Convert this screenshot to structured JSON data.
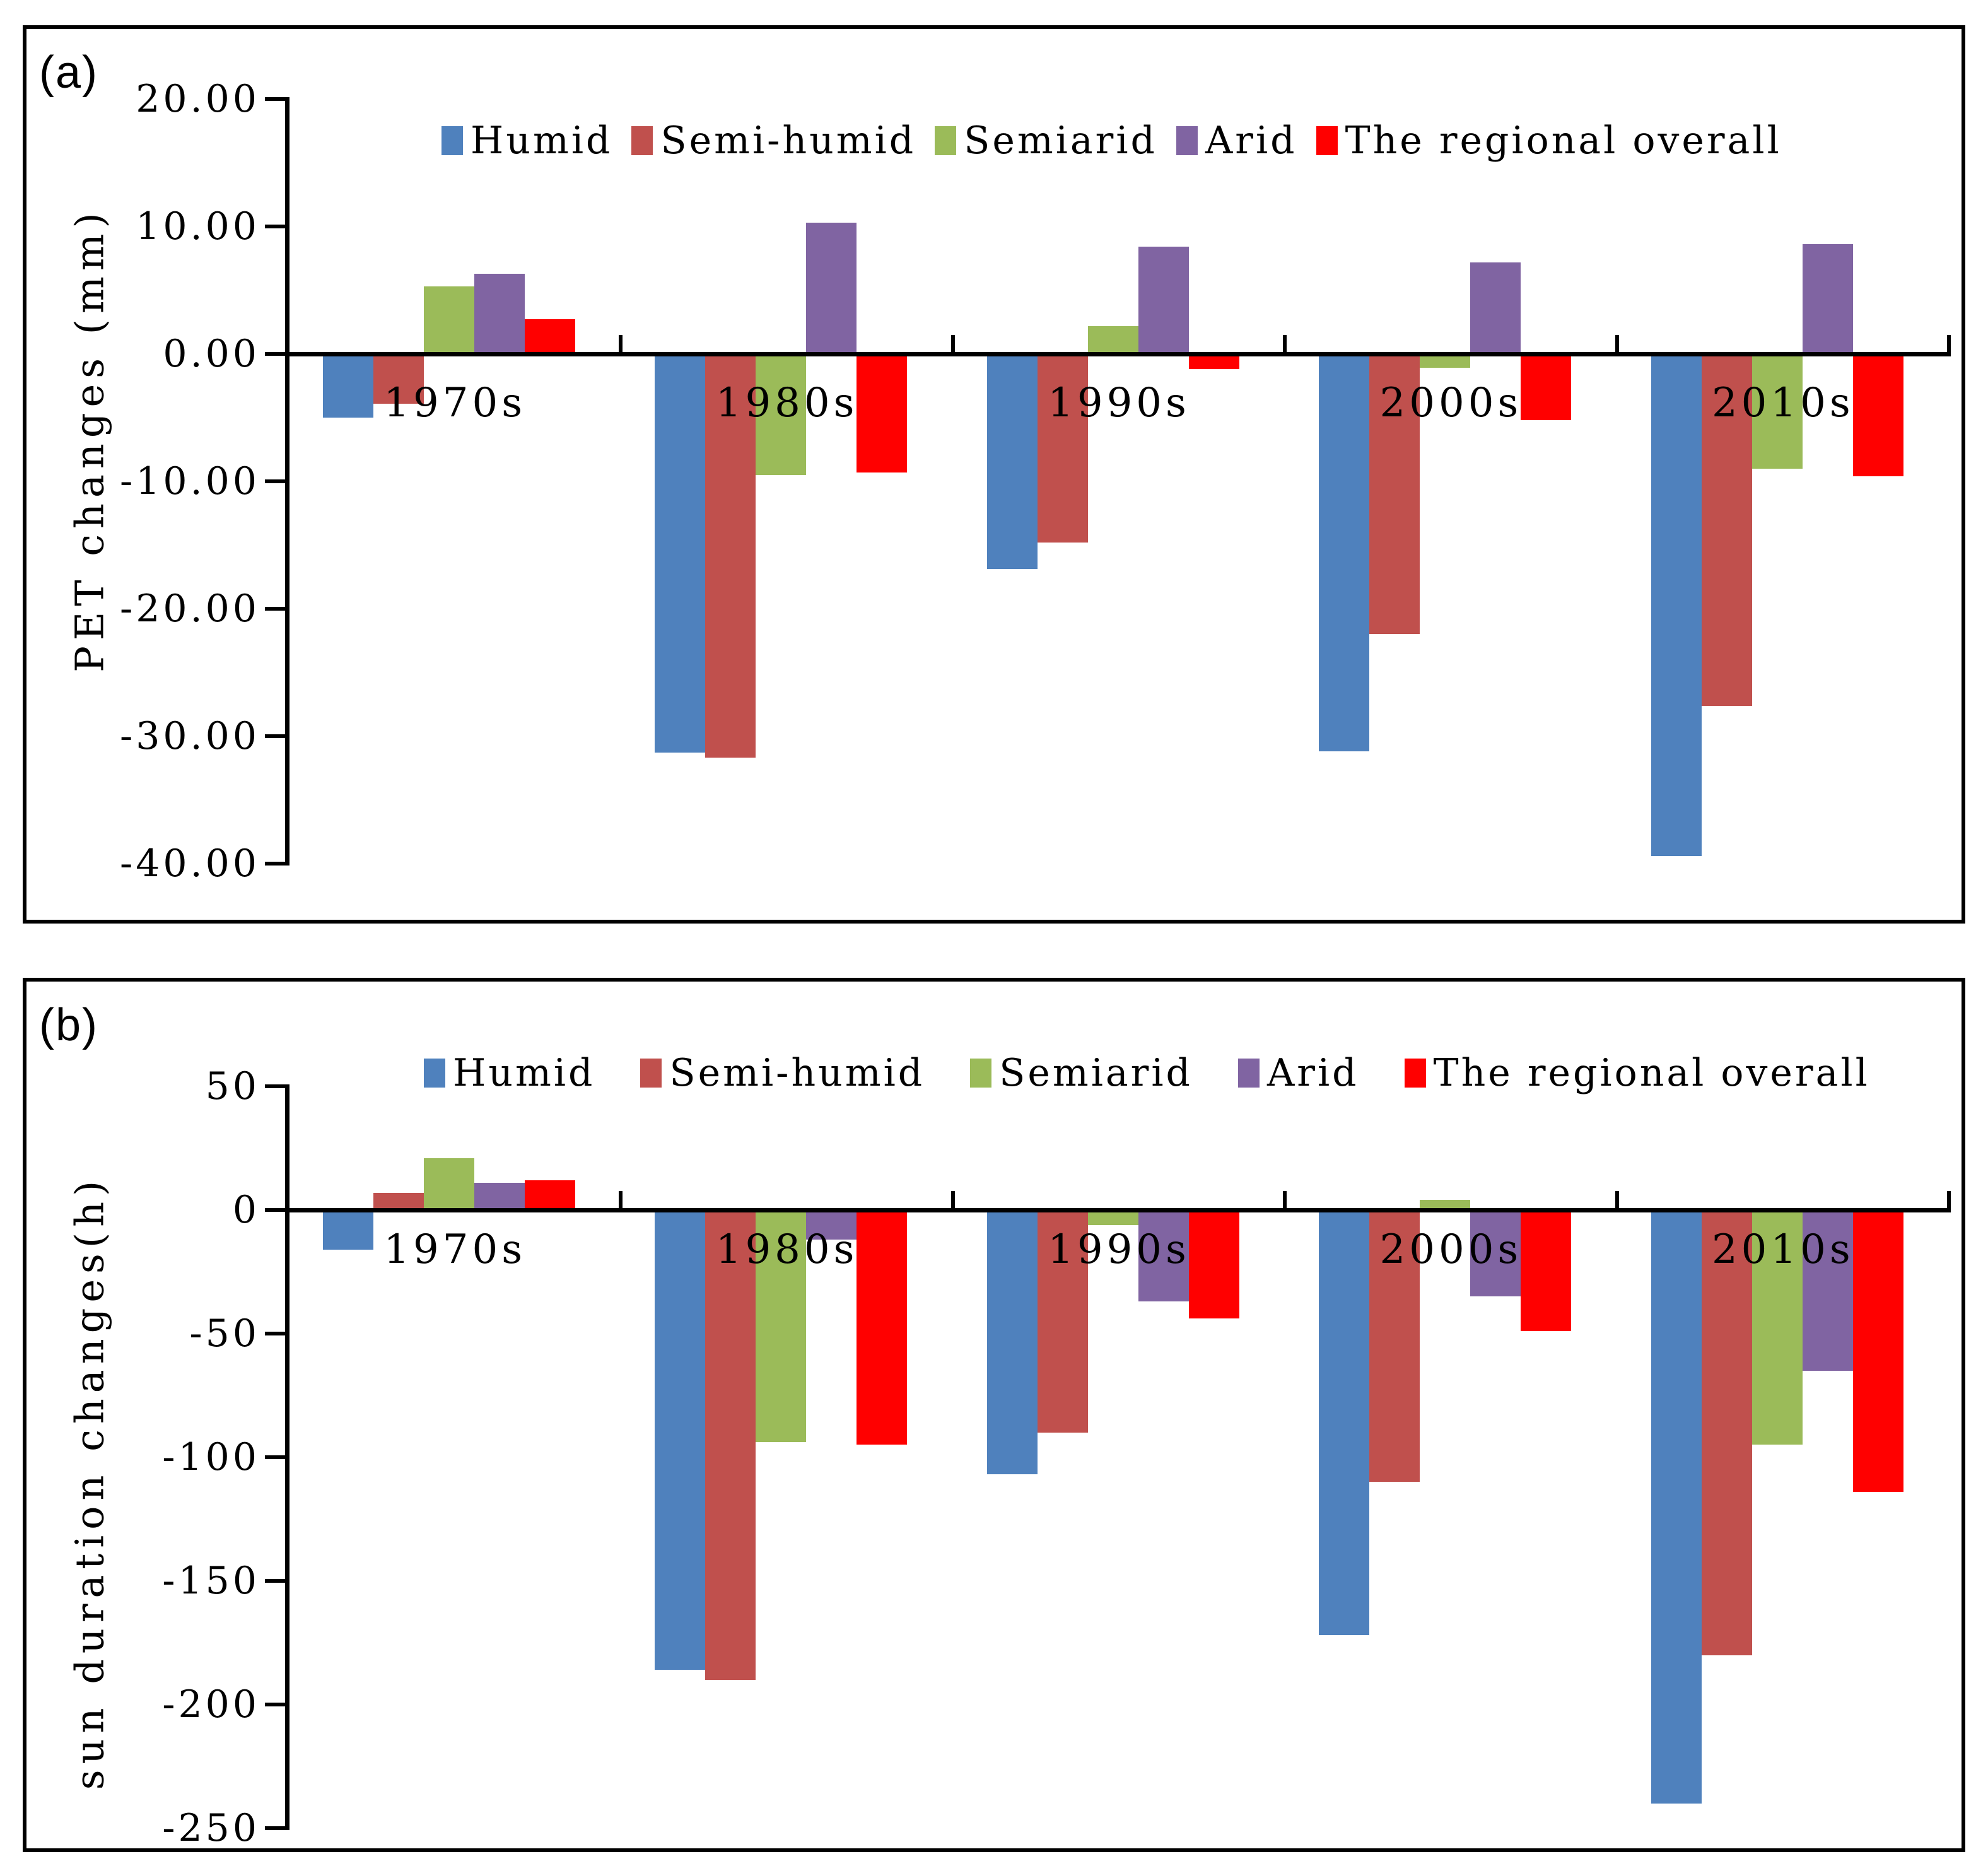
{
  "chart_data": [
    {
      "id": "a",
      "type": "bar",
      "panel_label": "(a)",
      "ylabel": "PET changes (mm)",
      "xlabel": "",
      "title": "",
      "grid": false,
      "legend_position": "top-inside",
      "ylim": [
        -40,
        20
      ],
      "y_tick_values": [
        20,
        10,
        0,
        -10,
        -20,
        -30,
        -40
      ],
      "y_tick_labels": [
        "20.00",
        "10.00",
        "0.00",
        "-10.00",
        "-20.00",
        "-30.00",
        "-40.00"
      ],
      "categories": [
        "1970s",
        "1980s",
        "1990s",
        "2000s",
        "2010s"
      ],
      "series": [
        {
          "name": "Humid",
          "color": "#4F81BD",
          "values": [
            -5.0,
            -31.3,
            -16.9,
            -31.2,
            -39.4
          ]
        },
        {
          "name": "Semi-humid",
          "color": "#C0504D",
          "values": [
            -3.9,
            -31.7,
            -14.8,
            -22.0,
            -27.6
          ]
        },
        {
          "name": "Semiarid",
          "color": "#9BBB59",
          "values": [
            5.3,
            -9.5,
            2.2,
            -1.1,
            -9.0
          ]
        },
        {
          "name": "Arid",
          "color": "#8064A2",
          "values": [
            6.3,
            10.3,
            8.4,
            7.2,
            8.6
          ]
        },
        {
          "name": "The regional overall",
          "color": "#FF0000",
          "values": [
            2.7,
            -9.3,
            -1.2,
            -5.2,
            -9.6
          ]
        }
      ]
    },
    {
      "id": "b",
      "type": "bar",
      "panel_label": "(b)",
      "ylabel": "sun duration changes(h)",
      "xlabel": "",
      "title": "",
      "grid": false,
      "legend_position": "top-inside",
      "ylim": [
        -250,
        50
      ],
      "y_tick_values": [
        50,
        0,
        -50,
        -100,
        -150,
        -200,
        -250
      ],
      "y_tick_labels": [
        "50",
        "0",
        "-50",
        "-100",
        "-150",
        "-200",
        "-250"
      ],
      "categories": [
        "1970s",
        "1980s",
        "1990s",
        "2000s",
        "2010s"
      ],
      "series": [
        {
          "name": "Humid",
          "color": "#4F81BD",
          "values": [
            -16,
            -186,
            -107,
            -172,
            -240
          ]
        },
        {
          "name": "Semi-humid",
          "color": "#C0504D",
          "values": [
            7,
            -190,
            -90,
            -110,
            -180
          ]
        },
        {
          "name": "Semiarid",
          "color": "#9BBB59",
          "values": [
            21,
            -94,
            -6,
            4,
            -95
          ]
        },
        {
          "name": "Arid",
          "color": "#8064A2",
          "values": [
            11,
            -12,
            -37,
            -35,
            -65
          ]
        },
        {
          "name": "The regional overall",
          "color": "#FF0000",
          "values": [
            12,
            -95,
            -44,
            -49,
            -114
          ]
        }
      ]
    }
  ]
}
